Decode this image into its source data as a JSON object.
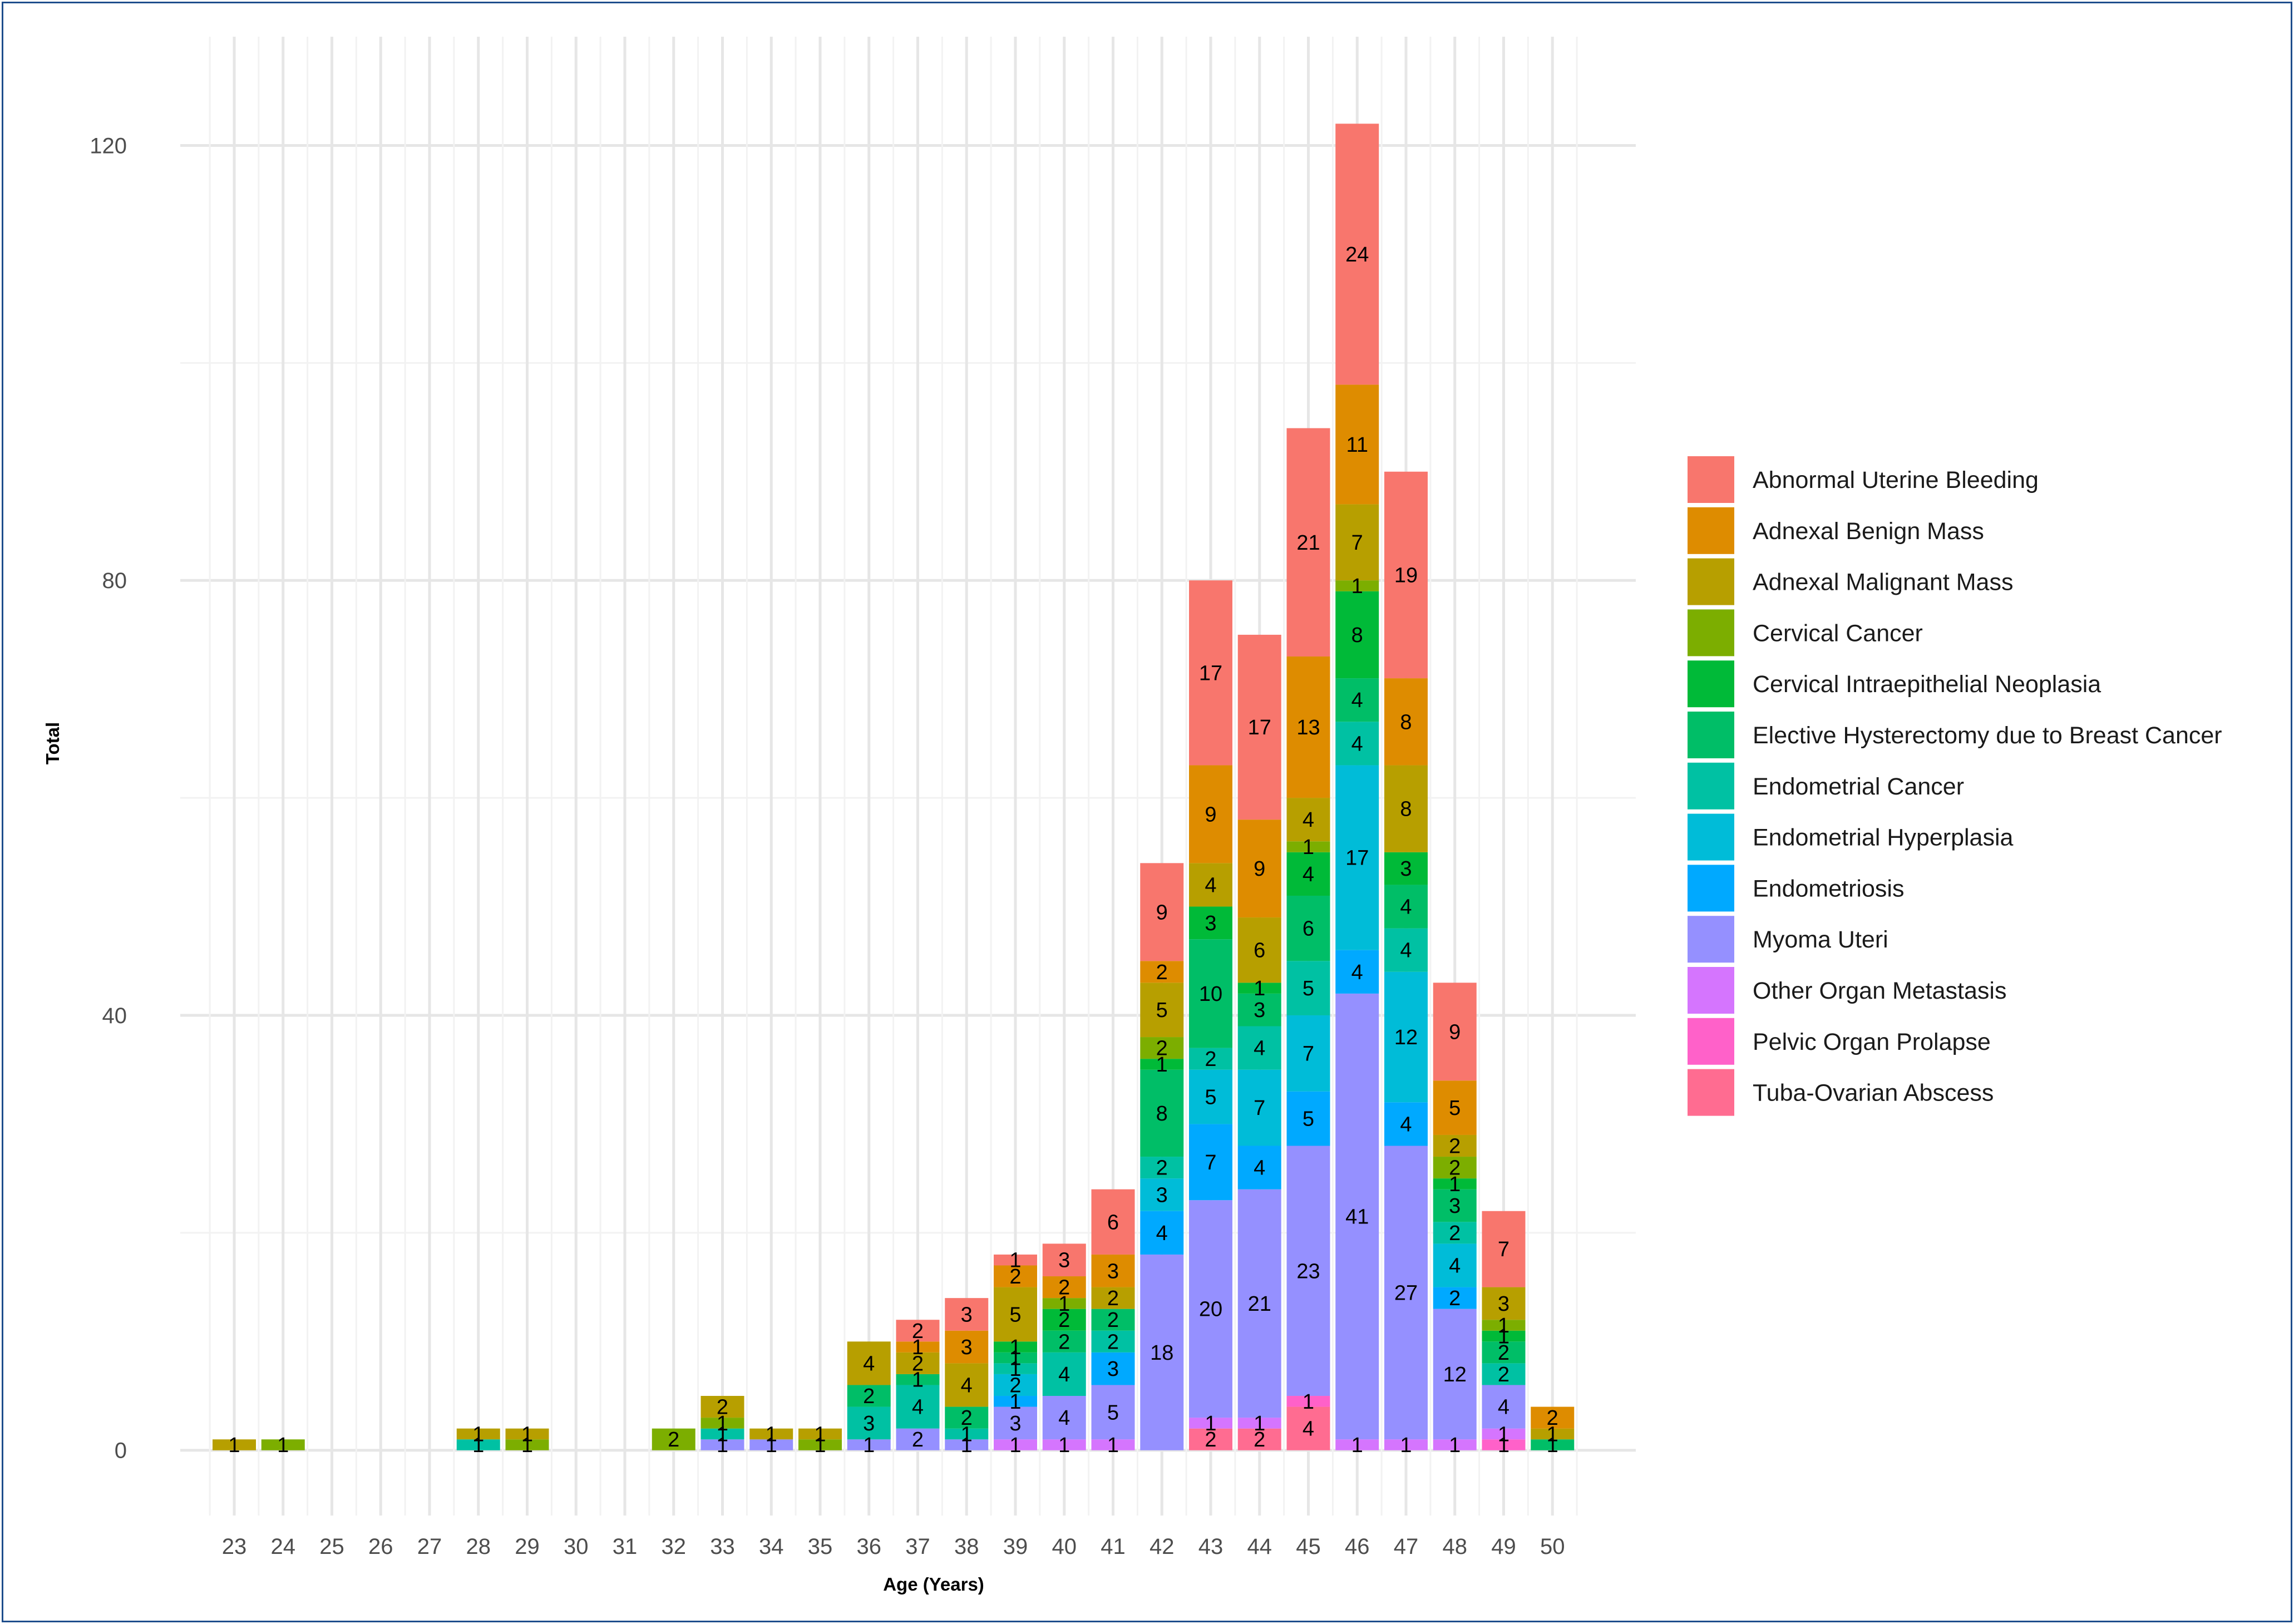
{
  "chart_data": {
    "type": "bar",
    "stacked": true,
    "title": "",
    "xlabel": "Age (Years)",
    "ylabel": "Total",
    "ylim": [
      -6,
      130
    ],
    "yticks": [
      0,
      40,
      80,
      120
    ],
    "grid": true,
    "legend_position": "right",
    "categories": [
      "23",
      "24",
      "25",
      "26",
      "27",
      "28",
      "29",
      "30",
      "31",
      "32",
      "33",
      "34",
      "35",
      "36",
      "37",
      "38",
      "39",
      "40",
      "41",
      "42",
      "43",
      "44",
      "45",
      "46",
      "47",
      "48",
      "49",
      "50"
    ],
    "series": [
      {
        "name": "Tuba-Ovarian Abscess",
        "color": "#FF6C91",
        "values": [
          0,
          0,
          0,
          0,
          0,
          0,
          0,
          0,
          0,
          0,
          0,
          0,
          0,
          0,
          0,
          0,
          0,
          0,
          0,
          0,
          2,
          2,
          4,
          0,
          0,
          0,
          0,
          0
        ]
      },
      {
        "name": "Pelvic Organ Prolapse",
        "color": "#FF61C9",
        "values": [
          0,
          0,
          0,
          0,
          0,
          0,
          0,
          0,
          0,
          0,
          0,
          0,
          0,
          0,
          0,
          0,
          0,
          0,
          0,
          0,
          0,
          0,
          1,
          0,
          0,
          0,
          1,
          0
        ]
      },
      {
        "name": "Other Organ Metastasis",
        "color": "#D575FE",
        "values": [
          0,
          0,
          0,
          0,
          0,
          0,
          0,
          0,
          0,
          0,
          0,
          0,
          0,
          0,
          0,
          0,
          1,
          1,
          1,
          0,
          1,
          1,
          0,
          1,
          1,
          1,
          1,
          0
        ]
      },
      {
        "name": "Myoma Uteri",
        "color": "#9590FF",
        "values": [
          0,
          0,
          0,
          0,
          0,
          0,
          0,
          0,
          0,
          0,
          1,
          1,
          0,
          1,
          2,
          1,
          3,
          4,
          5,
          18,
          20,
          21,
          23,
          41,
          27,
          12,
          4,
          0
        ]
      },
      {
        "name": "Endometriosis",
        "color": "#00A9FF",
        "values": [
          0,
          0,
          0,
          0,
          0,
          0,
          0,
          0,
          0,
          0,
          0,
          0,
          0,
          0,
          0,
          0,
          1,
          0,
          3,
          4,
          7,
          4,
          5,
          4,
          4,
          2,
          0,
          0
        ]
      },
      {
        "name": "Endometrial Hyperplasia",
        "color": "#00BCD8",
        "values": [
          0,
          0,
          0,
          0,
          0,
          0,
          0,
          0,
          0,
          0,
          0,
          0,
          0,
          0,
          0,
          0,
          2,
          0,
          0,
          3,
          5,
          7,
          7,
          17,
          12,
          4,
          0,
          0
        ]
      },
      {
        "name": "Endometrial Cancer",
        "color": "#00C1A3",
        "values": [
          0,
          0,
          0,
          0,
          0,
          1,
          0,
          0,
          0,
          0,
          1,
          0,
          0,
          3,
          4,
          1,
          1,
          4,
          2,
          2,
          2,
          4,
          5,
          4,
          4,
          2,
          2,
          0
        ]
      },
      {
        "name": "Elective Hysterectomy due to Breast Cancer",
        "color": "#00BE67",
        "values": [
          0,
          0,
          0,
          0,
          0,
          0,
          0,
          0,
          0,
          0,
          0,
          0,
          0,
          2,
          1,
          2,
          1,
          2,
          2,
          8,
          10,
          3,
          6,
          4,
          4,
          3,
          2,
          1
        ]
      },
      {
        "name": "Cervical Intraepithelial Neoplasia",
        "color": "#00BA38",
        "values": [
          0,
          0,
          0,
          0,
          0,
          0,
          0,
          0,
          0,
          0,
          0,
          0,
          0,
          0,
          0,
          0,
          1,
          2,
          0,
          1,
          3,
          1,
          4,
          8,
          3,
          1,
          1,
          0
        ]
      },
      {
        "name": "Cervical Cancer",
        "color": "#7CAE00",
        "values": [
          0,
          1,
          0,
          0,
          0,
          0,
          1,
          0,
          0,
          2,
          1,
          0,
          1,
          0,
          0,
          0,
          0,
          1,
          0,
          2,
          0,
          0,
          1,
          1,
          0,
          2,
          1,
          0
        ]
      },
      {
        "name": "Adnexal Malignant Mass",
        "color": "#B79F00",
        "values": [
          1,
          0,
          0,
          0,
          0,
          1,
          1,
          0,
          0,
          0,
          2,
          1,
          1,
          4,
          2,
          4,
          5,
          0,
          2,
          5,
          4,
          6,
          4,
          7,
          8,
          2,
          3,
          1
        ]
      },
      {
        "name": "Adnexal Benign Mass",
        "color": "#DE8C00",
        "values": [
          0,
          0,
          0,
          0,
          0,
          0,
          0,
          0,
          0,
          0,
          0,
          0,
          0,
          0,
          1,
          3,
          2,
          2,
          3,
          2,
          9,
          9,
          13,
          11,
          8,
          5,
          0,
          2
        ]
      },
      {
        "name": "Abnormal Uterine Bleeding",
        "color": "#F8766D",
        "values": [
          0,
          0,
          0,
          0,
          0,
          0,
          0,
          0,
          0,
          0,
          0,
          0,
          0,
          0,
          2,
          3,
          1,
          3,
          6,
          9,
          17,
          17,
          21,
          24,
          19,
          9,
          7,
          0
        ]
      }
    ],
    "legend_order": [
      "Abnormal Uterine Bleeding",
      "Adnexal Benign Mass",
      "Adnexal Malignant Mass",
      "Cervical Cancer",
      "Cervical Intraepithelial Neoplasia",
      "Elective Hysterectomy due to Breast Cancer",
      "Endometrial Cancer",
      "Endometrial Hyperplasia",
      "Endometriosis",
      "Myoma Uteri",
      "Other Organ Metastasis",
      "Pelvic Organ Prolapse",
      "Tuba-Ovarian Abscess"
    ]
  }
}
